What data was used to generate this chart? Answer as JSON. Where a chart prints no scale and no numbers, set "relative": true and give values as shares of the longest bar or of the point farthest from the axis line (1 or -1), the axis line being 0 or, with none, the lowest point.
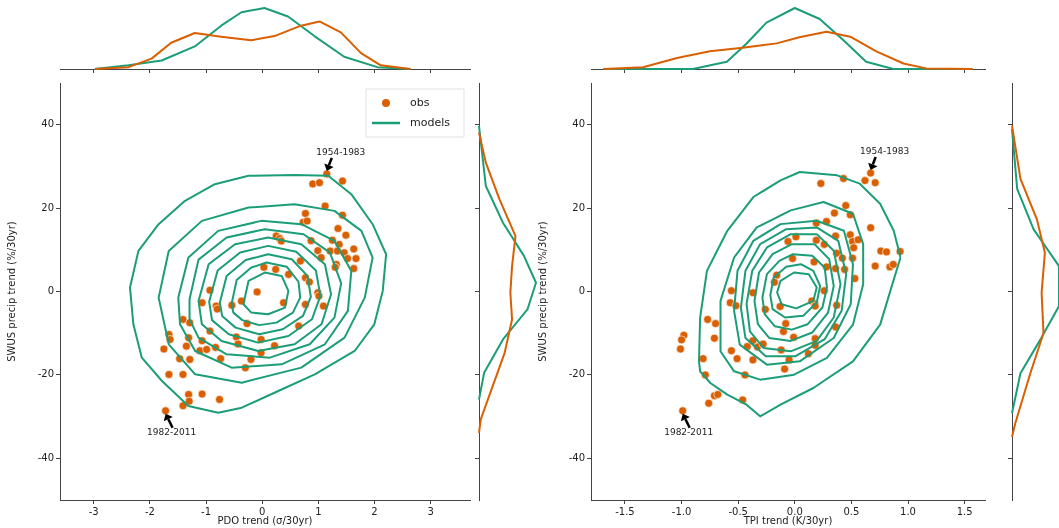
{
  "chart_data": [
    {
      "type": "line",
      "relative": true,
      "tick_labels": false,
      "xlim": [
        -3.6,
        3.7
      ],
      "xticks": [
        -3,
        -2,
        -1,
        0,
        1,
        2,
        3
      ],
      "series": [
        {
          "color": "#d95f02",
          "x": [
            -2.98,
            -2.38,
            -1.97,
            -1.62,
            -1.2,
            -0.73,
            -0.2,
            0.22,
            0.69,
            1.02,
            1.4,
            1.76,
            2.11,
            2.64
          ],
          "values": [
            0,
            0.03,
            0.17,
            0.43,
            0.59,
            0.53,
            0.47,
            0.54,
            0.71,
            0.78,
            0.6,
            0.26,
            0.06,
            0
          ]
        },
        {
          "color": "#1b9e77",
          "x": [
            -2.98,
            -2.38,
            -1.79,
            -1.2,
            -0.73,
            -0.37,
            0.04,
            0.46,
            0.93,
            1.46,
            2.05,
            2.64
          ],
          "values": [
            0,
            0.06,
            0.14,
            0.37,
            0.71,
            0.93,
            1,
            0.86,
            0.54,
            0.2,
            0.03,
            0
          ]
        }
      ]
    },
    {
      "type": "scatter",
      "xlabel": "PDO trend (σ/30yr)",
      "ylabel": "SWUS precip trend (%/30yr)",
      "xlim": [
        -3.6,
        3.7
      ],
      "ylim": [
        -50,
        50
      ],
      "xticks": [
        -3,
        -2,
        -1,
        0,
        1,
        2,
        3
      ],
      "yticks": [
        -40,
        -20,
        0,
        20,
        40
      ],
      "grid": false,
      "legend": "top right",
      "annotations": [
        {
          "text": "1954-1983",
          "x": 1.15,
          "y": 28.2
        },
        {
          "text": "1982-2011",
          "x": -1.72,
          "y": -28.6
        },
        "models"
      ],
      "series": [
        {
          "name": "obs",
          "type": "scatter",
          "marker": "circle",
          "color": "#d95f02",
          "x": [
            1.15,
            0.9,
            1.02,
            1.43,
            1.12,
            0.77,
            1.43,
            0.73,
            0.8,
            1.35,
            1.49,
            0.25,
            0.31,
            0.34,
            0.87,
            1.25,
            1.37,
            0.99,
            1.05,
            1.21,
            1.34,
            1.46,
            1.63,
            1.52,
            1.67,
            1.63,
            1.32,
            1.3,
            0.68,
            0.03,
            0.24,
            0.47,
            0.77,
            0.84,
            0.99,
            1.01,
            1.09,
            0.77,
            0.38,
            -0.09,
            -0.37,
            -0.54,
            -0.93,
            -1.07,
            -0.82,
            -0.8,
            -0.27,
            0.65,
            -1.41,
            -1.29,
            -0.93,
            -1.66,
            -1.64,
            -1.31,
            -0.46,
            -0.43,
            -0.02,
            0.22,
            -1.07,
            -1.75,
            -1.35,
            -1.11,
            -0.99,
            -0.83,
            -0.02,
            -1.47,
            -1.29,
            -0.74,
            -0.2,
            -0.3,
            -1.66,
            -1.41,
            -1.31,
            -1.3,
            -1.07,
            -0.76,
            -1.41,
            -1.72
          ],
          "values": [
            28.2,
            25.8,
            26.1,
            26.5,
            20.5,
            18.7,
            18.3,
            16.6,
            16.9,
            15.1,
            13.5,
            13.3,
            12.7,
            12.1,
            12.2,
            12.3,
            11.3,
            9.8,
            8.1,
            9.7,
            9.7,
            9.3,
            10.2,
            7.9,
            7.9,
            5.5,
            6.5,
            5.8,
            7.3,
            5.8,
            5.3,
            4.1,
            3.3,
            2.3,
            -0.3,
            -1.1,
            -3.5,
            -3.1,
            -2.7,
            -0.1,
            -2.3,
            -3.3,
            0.3,
            -2.7,
            -3.5,
            -4.2,
            -7.7,
            -8.3,
            -6.7,
            -7.5,
            -9.5,
            -10.3,
            -11.5,
            -11.1,
            -10.9,
            -12.6,
            -11.5,
            -13,
            -11.8,
            -13.8,
            -13.1,
            -14.2,
            -13.9,
            -13.4,
            -14.7,
            -16.1,
            -16.3,
            -16.1,
            -16.3,
            -18.3,
            -19.9,
            -19.9,
            -24.7,
            -26.3,
            -24.6,
            -25.9,
            -27.4,
            -28.6
          ]
        }
      ]
    },
    {
      "type": "line",
      "relative": true,
      "orientation": "horizontal",
      "tick_labels": false,
      "ylim": [
        -50,
        50
      ],
      "yticks": [
        -40,
        -20,
        0,
        20,
        40
      ],
      "series": [
        {
          "color": "#d95f02",
          "x": [
            38.1,
            30.9,
            22.1,
            13.3,
            6.1,
            -0.3,
            -6.7,
            -14.7,
            -22.7,
            -30.7,
            -33.9
          ],
          "values": [
            0,
            0.12,
            0.36,
            0.64,
            0.58,
            0.55,
            0.58,
            0.45,
            0.24,
            0.03,
            0
          ]
        },
        {
          "color": "#1b9e77",
          "x": [
            39.7,
            25.3,
            16.5,
            8.5,
            2.1,
            -4.3,
            -11.5,
            -19.5,
            -25.9
          ],
          "values": [
            0,
            0.12,
            0.42,
            0.79,
            1,
            0.85,
            0.42,
            0.09,
            0
          ]
        }
      ]
    },
    {
      "type": "line",
      "relative": true,
      "tick_labels": false,
      "xlim": [
        -1.8,
        1.68
      ],
      "xticks": [
        -1.5,
        -1,
        -0.5,
        0,
        0.5,
        1,
        1.5
      ],
      "series": [
        {
          "color": "#d95f02",
          "x": [
            -1.69,
            -1.34,
            -1.04,
            -0.75,
            -0.46,
            -0.16,
            0.04,
            0.28,
            0.49,
            0.72,
            0.96,
            1.16,
            1.57
          ],
          "values": [
            0,
            0.03,
            0.18,
            0.29,
            0.35,
            0.42,
            0.52,
            0.61,
            0.53,
            0.29,
            0.09,
            0.01,
            0
          ]
        },
        {
          "color": "#1b9e77",
          "x": [
            -1.69,
            -0.9,
            -0.6,
            -0.43,
            -0.25,
            0,
            0.22,
            0.43,
            0.63,
            0.87,
            1.57
          ],
          "values": [
            0,
            0,
            0.12,
            0.41,
            0.76,
            1,
            0.82,
            0.47,
            0.12,
            0,
            0
          ]
        }
      ]
    },
    {
      "type": "scatter",
      "xlabel": "TPI trend (K/30yr)",
      "ylabel": "SWUS precip trend (%/30yr)",
      "xlim": [
        -1.8,
        1.68
      ],
      "ylim": [
        -50,
        50
      ],
      "xticks": [
        -1.5,
        {
          "value": -1,
          "label": "-1.0"
        },
        -0.5,
        {
          "value": 0,
          "label": "0.0"
        },
        0.5,
        {
          "value": 1,
          "label": "1.0"
        },
        1.5
      ],
      "yticks": [
        -40,
        -20,
        0,
        20,
        40
      ],
      "grid": false,
      "annotations": [
        {
          "text": "1954-1983",
          "x": 0.67,
          "y": 28.4
        },
        {
          "text": "1982-2011",
          "x": -0.99,
          "y": -28.6
        }
      ],
      "series": [
        {
          "type": "scatter",
          "marker": "circle",
          "color": "#d95f02",
          "x": [
            0.67,
            0.62,
            0.71,
            0.23,
            0.43,
            0.45,
            0.49,
            0.35,
            0.19,
            0.28,
            0.67,
            0.36,
            0.49,
            0.51,
            0.56,
            0.52,
            -0.06,
            0.01,
            0.19,
            0.26,
            0.76,
            0.81,
            0.93,
            0.37,
            0.42,
            0.51,
            -0.02,
            0.17,
            0.28,
            0.36,
            0.44,
            0.71,
            0.84,
            0.87,
            0.53,
            -0.16,
            -0.18,
            -0.56,
            -0.37,
            -0.57,
            -0.52,
            -0.26,
            -0.13,
            0.15,
            0.18,
            0.18,
            0.26,
            0.37,
            0.36,
            -0.77,
            -0.7,
            -0.08,
            -0.1,
            -0.01,
            -0.98,
            -1,
            -1.01,
            -0.71,
            0.18,
            0.18,
            -0.37,
            -0.42,
            -0.33,
            -0.28,
            -0.56,
            -0.12,
            0.12,
            -0.81,
            -0.51,
            -0.37,
            -0.05,
            -0.09,
            -0.79,
            -0.44,
            -0.71,
            -0.68,
            -0.76,
            -0.46,
            -0.99
          ],
          "values": [
            28.4,
            26.6,
            26.1,
            25.9,
            27.1,
            20.6,
            18.4,
            18.8,
            16.4,
            16.8,
            15.3,
            13.3,
            13.6,
            12,
            12.4,
            10.5,
            12,
            13.1,
            12.3,
            11.3,
            9.7,
            9.5,
            9.6,
            9.2,
            8,
            8,
            7.9,
            7.1,
            5.9,
            5.5,
            5.3,
            6.1,
            5.9,
            6.5,
            3.1,
            3.9,
            2.2,
            0.2,
            -0.3,
            -2.7,
            -3.4,
            -4.3,
            -3.6,
            -2.3,
            -3,
            -3.5,
            0.2,
            -3.3,
            -8.5,
            -6.7,
            -7.7,
            -7.7,
            -9.6,
            -11,
            -10.5,
            -11.6,
            -13.8,
            -11.2,
            -11.3,
            -12.9,
            -11.8,
            -13.2,
            -13.3,
            -12.6,
            -14.2,
            -14,
            -14.9,
            -16.1,
            -16.1,
            -16.4,
            -16.4,
            -18.6,
            -20,
            -20,
            -25,
            -24.7,
            -26.8,
            -26,
            -28.6
          ]
        }
      ]
    },
    {
      "type": "line",
      "relative": true,
      "orientation": "horizontal",
      "tick_labels": false,
      "ylim": [
        -50,
        50
      ],
      "yticks": [
        -40,
        -20,
        0,
        20,
        40
      ],
      "series": [
        {
          "color": "#d95f02",
          "x": [
            39.8,
            27,
            17.3,
            9.3,
            -0.3,
            -10,
            -19.6,
            -31.6,
            -34.9
          ],
          "values": [
            0,
            0.18,
            0.53,
            0.7,
            0.63,
            0.67,
            0.39,
            0.07,
            0
          ]
        },
        {
          "color": "#1b9e77",
          "x": [
            39,
            24.6,
            14.9,
            6.1,
            -3.5,
            -11.6,
            -19.6,
            -29.2
          ],
          "values": [
            0,
            0.11,
            0.46,
            1,
            1,
            0.6,
            0.18,
            0
          ]
        }
      ]
    }
  ]
}
